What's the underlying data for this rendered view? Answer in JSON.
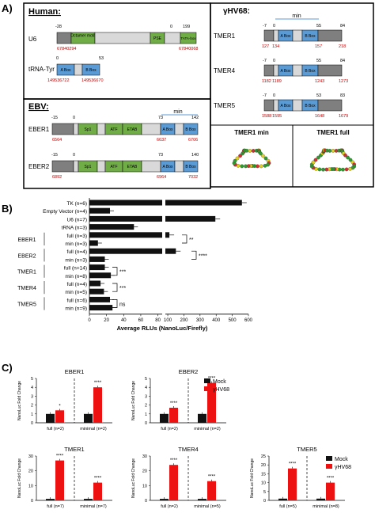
{
  "panel_labels": {
    "a": "A)",
    "b": "B)",
    "c": "C)"
  },
  "human": {
    "title": "Human:",
    "u6": {
      "label": "U6",
      "pos_start": "-28",
      "pos_zero": "0",
      "pos_end": "199",
      "octamer": "Octamer motif",
      "pse": "PSE",
      "tata": "TATA-box",
      "coord_left": "67840294",
      "coord_right": "67840068"
    },
    "trna": {
      "label": "tRNA-Tyr",
      "pos_zero": "0",
      "pos_end": "53",
      "abox": "A Box",
      "bbox": "B Box",
      "coord_left": "149536722",
      "coord_right": "149536670"
    }
  },
  "ebv": {
    "title": "EBV:",
    "min_label": "min",
    "eber1": {
      "label": "EBER1",
      "pos_start": "-15",
      "pos_zero": "0",
      "pos_73": "73",
      "pos_end": "142",
      "sp1": "Sp1",
      "atf": "ATF",
      "etab": "ETAB",
      "abox": "A Box",
      "bbox": "B Box",
      "coord_left": "6564",
      "coord_mid": "6637",
      "coord_right": "6706"
    },
    "eber2": {
      "label": "EBER2",
      "pos_start": "-15",
      "pos_zero": "0",
      "pos_73": "73",
      "pos_end": "140",
      "sp1": "Sp1",
      "atf": "ATF",
      "etab": "ETAB",
      "abox": "A Box",
      "bbox": "B Box",
      "coord_left": "6892",
      "coord_mid": "6964",
      "coord_right": "7032"
    }
  },
  "ghv": {
    "title": "γHV68:",
    "min_label": "min",
    "tmers": [
      {
        "label": "TMER1",
        "p0": "-7",
        "p1": "0",
        "p2": "55",
        "p3": "84",
        "c0": "127",
        "c1": "134",
        "c2": "157",
        "c3": "218",
        "abox": "A Box",
        "bbox": "B Box"
      },
      {
        "label": "TMER4",
        "p0": "-7",
        "p1": "0",
        "p2": "55",
        "p3": "84",
        "c0": "1182",
        "c1": "1189",
        "c2": "1243",
        "c3": "1273",
        "abox": "A Box",
        "bbox": "B Box"
      },
      {
        "label": "TMER5",
        "p0": "-7",
        "p1": "0",
        "p2": "53",
        "p3": "83",
        "c0": "1588",
        "c1": "1595",
        "c2": "1648",
        "c3": "1679",
        "abox": "A Box",
        "bbox": "B Box"
      }
    ],
    "struct_min": "TMER1 min",
    "struct_full": "TMER1 full"
  },
  "chart_data": [
    {
      "type": "bar",
      "xlabel": "Average RLUs (NanoLuc/Firefly)",
      "xticks": [
        "0",
        "20",
        "40",
        "60",
        "80",
        "100",
        "200",
        "300",
        "400",
        "500",
        "600"
      ],
      "xaxis": {
        "segment1": [
          0,
          85
        ],
        "segment2": [
          85,
          600
        ]
      },
      "rows": [
        {
          "label": "TK (n=6)",
          "value": 560
        },
        {
          "label": "Empty Vector (n=4)",
          "value": 24
        },
        {
          "label": "U6 (n=7)",
          "value": 395
        },
        {
          "label": "tRNA (n=3)",
          "value": 52
        },
        {
          "label": "full (n=3)",
          "value": 110
        },
        {
          "label": "min (n=3)",
          "value": 10
        },
        {
          "label": "full (n=4)",
          "value": 150
        },
        {
          "label": "min (n=3)",
          "value": 18
        },
        {
          "label": "full (n=14)",
          "value": 18
        },
        {
          "label": "min (n=8)",
          "value": 25
        },
        {
          "label": "full (n=4)",
          "value": 13
        },
        {
          "label": "min (n=5)",
          "value": 17
        },
        {
          "label": "full (n=6)",
          "value": 24
        },
        {
          "label": "min (n=9)",
          "value": 27
        }
      ],
      "groups": [
        {
          "label": "EBER1",
          "sig": "**"
        },
        {
          "label": "EBER2",
          "sig": "****"
        },
        {
          "label": "TMER1",
          "sig": "***"
        },
        {
          "label": "TMER4",
          "sig": "***"
        },
        {
          "label": "TMER5",
          "sig": "ns"
        }
      ]
    },
    {
      "type": "bar",
      "title": "EBER1",
      "ylabel": "NanoLuc Fold Change",
      "ylim": [
        0,
        5
      ],
      "yticks": [
        "0",
        "1",
        "2",
        "3",
        "4",
        "5"
      ],
      "categories": [
        "full (n=2)",
        "minimal (n=2)"
      ],
      "series": [
        {
          "name": "Mock",
          "values": [
            1,
            1
          ]
        },
        {
          "name": "γHV68",
          "values": [
            1.4,
            4.0
          ]
        }
      ],
      "sig": [
        "*",
        "****"
      ]
    },
    {
      "type": "bar",
      "title": "EBER2",
      "ylabel": "NanoLuc Fold Change",
      "ylim": [
        0,
        5
      ],
      "yticks": [
        "0",
        "1",
        "2",
        "3",
        "4",
        "5"
      ],
      "categories": [
        "full (n=2)",
        "minimal (n=2)"
      ],
      "series": [
        {
          "name": "Mock",
          "values": [
            1,
            1
          ]
        },
        {
          "name": "γHV68",
          "values": [
            1.7,
            4.5
          ]
        }
      ],
      "sig": [
        "****",
        "****"
      ]
    },
    {
      "type": "bar",
      "title": "TMER1",
      "ylabel": "NanoLuc Fold Change",
      "ylim": [
        0,
        30
      ],
      "yticks": [
        "0",
        "10",
        "20",
        "30"
      ],
      "categories": [
        "full (n=7)",
        "minimal (n=7)"
      ],
      "series": [
        {
          "name": "Mock",
          "values": [
            1,
            1
          ]
        },
        {
          "name": "γHV68",
          "values": [
            27,
            12
          ]
        }
      ],
      "sig": [
        "****",
        "****"
      ]
    },
    {
      "type": "bar",
      "title": "TMER4",
      "ylabel": "NanoLuc Fold Change",
      "ylim": [
        0,
        30
      ],
      "yticks": [
        "0",
        "10",
        "20",
        "30"
      ],
      "categories": [
        "full (n=2)",
        "minimal (n=5)"
      ],
      "series": [
        {
          "name": "Mock",
          "values": [
            1,
            1
          ]
        },
        {
          "name": "γHV68",
          "values": [
            24,
            13
          ]
        }
      ],
      "sig": [
        "****",
        "****"
      ]
    },
    {
      "type": "bar",
      "title": "TMER5",
      "ylabel": "NanoLuc Fold Change",
      "ylim": [
        0,
        25
      ],
      "yticks": [
        "0",
        "5",
        "10",
        "15",
        "20",
        "25"
      ],
      "categories": [
        "full (n=5)",
        "minimal (n=8)"
      ],
      "series": [
        {
          "name": "Mock",
          "values": [
            1,
            1
          ]
        },
        {
          "name": "γHV68",
          "values": [
            18,
            10
          ]
        }
      ],
      "sig": [
        "****",
        "****"
      ]
    }
  ],
  "legend": {
    "mock": "Mock",
    "ghv": "γHV68"
  },
  "colors": {
    "gray": "#7f7f7f",
    "light": "#d9d9d9",
    "green": "#70ad47",
    "blue": "#5b9bd5",
    "red": "#c00000",
    "mock": "#111111",
    "ghv": "#ee1111"
  }
}
